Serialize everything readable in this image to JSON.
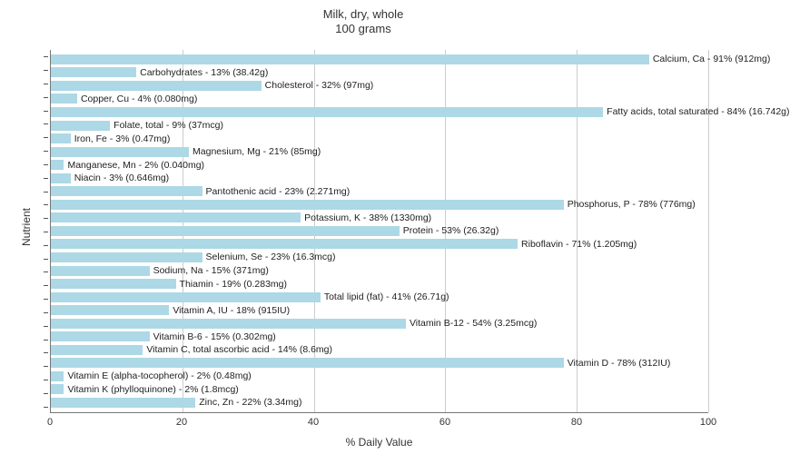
{
  "chart": {
    "type": "bar-horizontal",
    "title_line1": "Milk, dry, whole",
    "title_line2": "100 grams",
    "title_fontsize": 13,
    "xlabel": "% Daily Value",
    "ylabel": "Nutrient",
    "label_fontsize": 12,
    "xlim": [
      0,
      100
    ],
    "xtick_step": 20,
    "xticks": [
      0,
      20,
      40,
      60,
      80,
      100
    ],
    "background_color": "#ffffff",
    "grid_color": "#cccccc",
    "bar_color": "#add8e6",
    "bar_label_fontsize": 10.5,
    "bar_label_color": "#222222",
    "nutrients": [
      {
        "label": "Calcium, Ca - 91% (912mg)",
        "value": 91
      },
      {
        "label": "Carbohydrates - 13% (38.42g)",
        "value": 13
      },
      {
        "label": "Cholesterol - 32% (97mg)",
        "value": 32
      },
      {
        "label": "Copper, Cu - 4% (0.080mg)",
        "value": 4
      },
      {
        "label": "Fatty acids, total saturated - 84% (16.742g)",
        "value": 84
      },
      {
        "label": "Folate, total - 9% (37mcg)",
        "value": 9
      },
      {
        "label": "Iron, Fe - 3% (0.47mg)",
        "value": 3
      },
      {
        "label": "Magnesium, Mg - 21% (85mg)",
        "value": 21
      },
      {
        "label": "Manganese, Mn - 2% (0.040mg)",
        "value": 2
      },
      {
        "label": "Niacin - 3% (0.646mg)",
        "value": 3
      },
      {
        "label": "Pantothenic acid - 23% (2.271mg)",
        "value": 23
      },
      {
        "label": "Phosphorus, P - 78% (776mg)",
        "value": 78
      },
      {
        "label": "Potassium, K - 38% (1330mg)",
        "value": 38
      },
      {
        "label": "Protein - 53% (26.32g)",
        "value": 53
      },
      {
        "label": "Riboflavin - 71% (1.205mg)",
        "value": 71
      },
      {
        "label": "Selenium, Se - 23% (16.3mcg)",
        "value": 23
      },
      {
        "label": "Sodium, Na - 15% (371mg)",
        "value": 15
      },
      {
        "label": "Thiamin - 19% (0.283mg)",
        "value": 19
      },
      {
        "label": "Total lipid (fat) - 41% (26.71g)",
        "value": 41
      },
      {
        "label": "Vitamin A, IU - 18% (915IU)",
        "value": 18
      },
      {
        "label": "Vitamin B-12 - 54% (3.25mcg)",
        "value": 54
      },
      {
        "label": "Vitamin B-6 - 15% (0.302mg)",
        "value": 15
      },
      {
        "label": "Vitamin C, total ascorbic acid - 14% (8.6mg)",
        "value": 14
      },
      {
        "label": "Vitamin D - 78% (312IU)",
        "value": 78
      },
      {
        "label": "Vitamin E (alpha-tocopherol) - 2% (0.48mg)",
        "value": 2
      },
      {
        "label": "Vitamin K (phylloquinone) - 2% (1.8mcg)",
        "value": 2
      },
      {
        "label": "Zinc, Zn - 22% (3.34mg)",
        "value": 22
      }
    ]
  }
}
